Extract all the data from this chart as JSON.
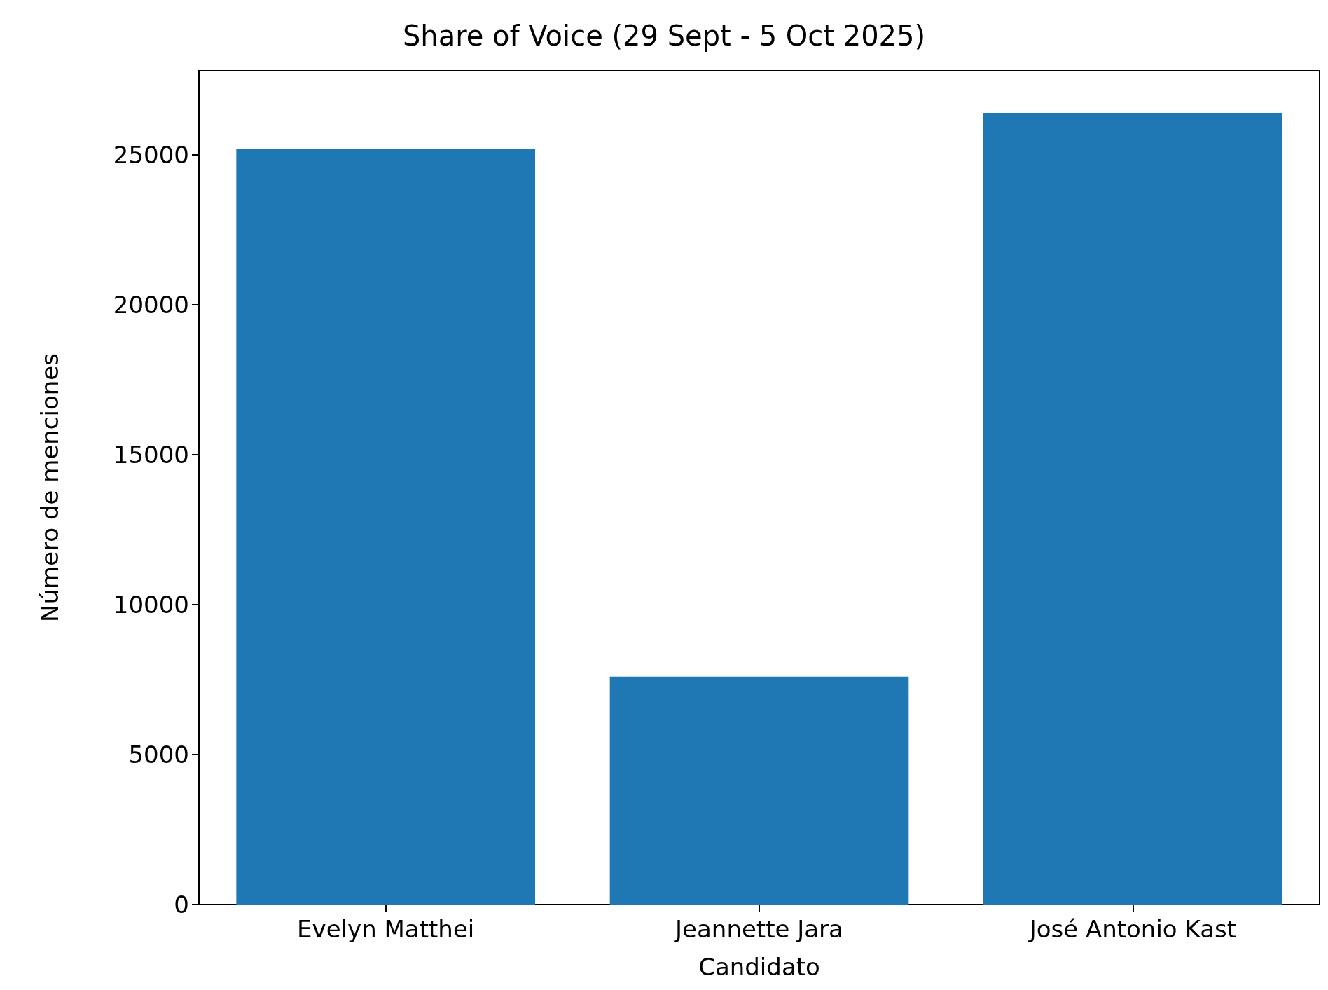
{
  "chart_data": {
    "type": "bar",
    "title": "Share of Voice (29 Sept - 5 Oct 2025)",
    "xlabel": "Candidato",
    "ylabel": "Número de menciones",
    "categories": [
      "Evelyn Matthei",
      "Jeannette Jara",
      "José Antonio Kast"
    ],
    "values": [
      25200,
      7600,
      26400
    ],
    "color": "#1f77b4",
    "ylim": [
      0,
      27800
    ],
    "yticks": [
      0,
      5000,
      10000,
      15000,
      20000,
      25000
    ],
    "grid": false
  }
}
